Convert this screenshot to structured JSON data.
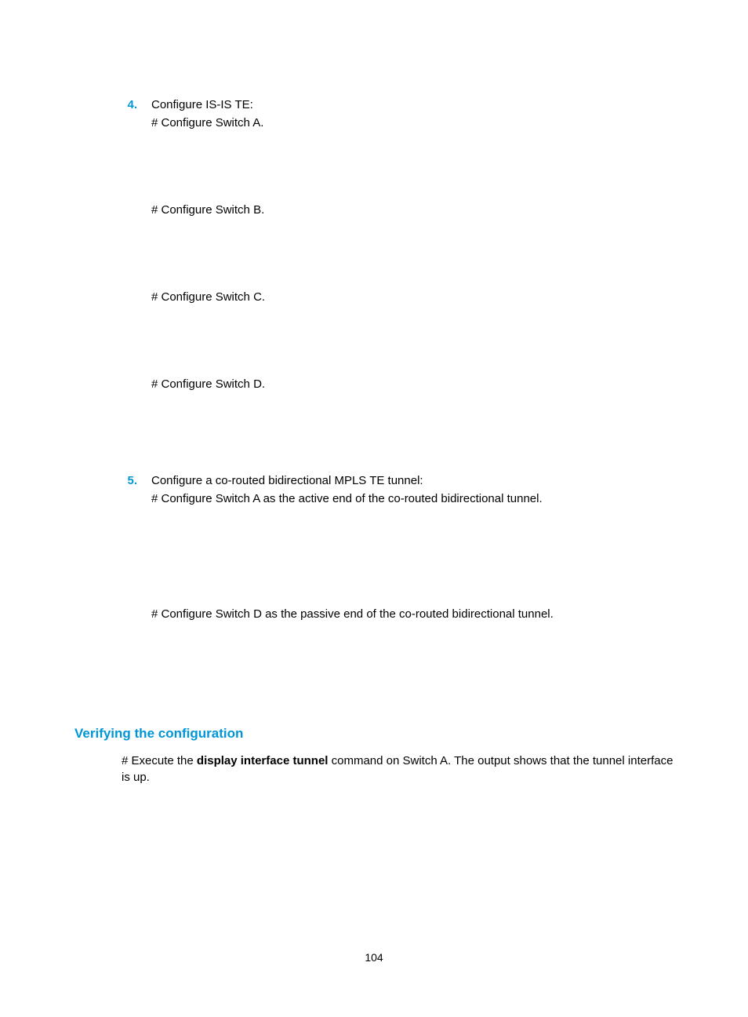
{
  "steps": [
    {
      "number": "4.",
      "title": "Configure IS-IS TE:",
      "subs": [
        "# Configure Switch A.",
        "# Configure Switch B.",
        "# Configure Switch C.",
        "# Configure Switch D."
      ]
    },
    {
      "number": "5.",
      "title": "Configure a co-routed bidirectional MPLS TE tunnel:",
      "subs": [
        "# Configure Switch A as the active end of the co-routed bidirectional tunnel.",
        "# Configure Switch D as the passive end of the co-routed bidirectional tunnel."
      ]
    }
  ],
  "verify": {
    "heading": "Verifying the configuration",
    "body_prefix": "# Execute the ",
    "body_bold": "display interface tunnel",
    "body_suffix": " command on Switch A. The output shows that the tunnel interface is up."
  },
  "page_number": "104",
  "colors": {
    "accent": "#0096d6",
    "text": "#000000",
    "background": "#ffffff"
  },
  "typography": {
    "body_fontsize": 15,
    "heading_fontsize": 17,
    "pagenum_fontsize": 14
  }
}
